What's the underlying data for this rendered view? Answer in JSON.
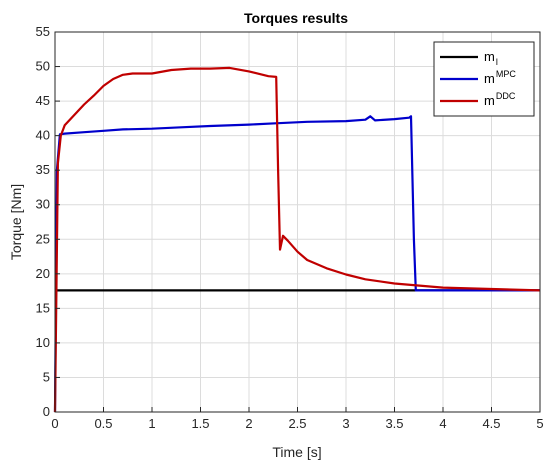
{
  "chart_data": {
    "type": "line",
    "title": "Torques results",
    "xlabel": "Time [s]",
    "ylabel": "Torque [Nm]",
    "xlim": [
      0,
      5
    ],
    "ylim": [
      0,
      55
    ],
    "xticks": [
      0,
      0.5,
      1,
      1.5,
      2,
      2.5,
      3,
      3.5,
      4,
      4.5,
      5
    ],
    "yticks": [
      0,
      5,
      10,
      15,
      20,
      25,
      30,
      35,
      40,
      45,
      50,
      55
    ],
    "xtick_labels": [
      "0",
      "0.5",
      "1",
      "1.5",
      "2",
      "2.5",
      "3",
      "3.5",
      "4",
      "4.5",
      "5"
    ],
    "ytick_labels": [
      "0",
      "5",
      "10",
      "15",
      "20",
      "25",
      "30",
      "35",
      "40",
      "45",
      "50",
      "55"
    ],
    "grid": true,
    "legend_position": "top-right",
    "series": [
      {
        "name": "m",
        "name_sub": "l",
        "color": "#000000",
        "x": [
          0,
          5
        ],
        "y": [
          17.6,
          17.6
        ]
      },
      {
        "name": "m",
        "name_sup": "MPC",
        "color": "#0000cc",
        "x": [
          0,
          0.02,
          0.05,
          0.1,
          0.3,
          0.5,
          0.7,
          1.0,
          1.3,
          1.6,
          2.0,
          2.3,
          2.6,
          3.0,
          3.2,
          3.25,
          3.3,
          3.5,
          3.65,
          3.67,
          3.7,
          3.72,
          4.0,
          4.5,
          5.0
        ],
        "y": [
          0,
          35,
          40.2,
          40.3,
          40.5,
          40.7,
          40.9,
          41.0,
          41.2,
          41.4,
          41.6,
          41.8,
          42.0,
          42.1,
          42.3,
          42.8,
          42.2,
          42.4,
          42.6,
          42.8,
          25,
          17.6,
          17.6,
          17.6,
          17.6
        ]
      },
      {
        "name": "m",
        "name_sup": "DDC",
        "color": "#c00000",
        "x": [
          0,
          0.03,
          0.06,
          0.1,
          0.2,
          0.3,
          0.4,
          0.5,
          0.6,
          0.7,
          0.8,
          1.0,
          1.2,
          1.4,
          1.6,
          1.8,
          2.0,
          2.2,
          2.28,
          2.3,
          2.32,
          2.35,
          2.4,
          2.5,
          2.6,
          2.8,
          3.0,
          3.2,
          3.5,
          4.0,
          4.5,
          5.0
        ],
        "y": [
          0,
          36,
          40,
          41.5,
          43.0,
          44.5,
          45.8,
          47.2,
          48.2,
          48.8,
          49.0,
          49.0,
          49.5,
          49.7,
          49.7,
          49.8,
          49.3,
          48.6,
          48.5,
          35,
          23.5,
          25.5,
          24.8,
          23.2,
          22.0,
          20.8,
          19.9,
          19.2,
          18.6,
          18.0,
          17.8,
          17.6
        ]
      }
    ]
  }
}
